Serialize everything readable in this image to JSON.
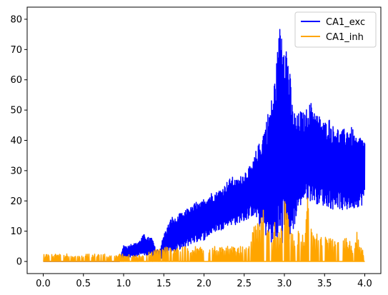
{
  "chart_data": {
    "type": "line",
    "xlim": [
      -0.2,
      4.2
    ],
    "ylim": [
      -4,
      84
    ],
    "xticks": [
      0.0,
      0.5,
      1.0,
      1.5,
      2.0,
      2.5,
      3.0,
      3.5,
      4.0
    ],
    "xtick_labels": [
      "0.0",
      "0.5",
      "1.0",
      "1.5",
      "2.0",
      "2.5",
      "3.0",
      "3.5",
      "4.0"
    ],
    "yticks": [
      0,
      10,
      20,
      30,
      40,
      50,
      60,
      70,
      80
    ],
    "ytick_labels": [
      "0",
      "10",
      "20",
      "30",
      "40",
      "50",
      "60",
      "70",
      "80"
    ],
    "grid": false,
    "legend_position": "top-right",
    "series": [
      {
        "name": "CA1_exc",
        "color": "#0000ff",
        "x": [
          0.0,
          0.25,
          0.5,
          0.75,
          0.95,
          1.0,
          1.05,
          1.1,
          1.15,
          1.2,
          1.25,
          1.3,
          1.35,
          1.4,
          1.45,
          1.5,
          1.55,
          1.6,
          1.65,
          1.7,
          1.75,
          1.8,
          1.85,
          1.9,
          1.95,
          2.0,
          2.05,
          2.1,
          2.15,
          2.2,
          2.25,
          2.3,
          2.35,
          2.4,
          2.45,
          2.5,
          2.55,
          2.6,
          2.65,
          2.7,
          2.75,
          2.8,
          2.85,
          2.9,
          2.95,
          3.0,
          3.05,
          3.1,
          3.15,
          3.2,
          3.25,
          3.3,
          3.35,
          3.4,
          3.45,
          3.5,
          3.55,
          3.6,
          3.65,
          3.7,
          3.75,
          3.8,
          3.85,
          3.9,
          3.95,
          4.0
        ],
        "y_high": [
          0,
          0,
          0,
          0,
          0,
          5.5,
          5,
          6,
          6,
          7,
          9,
          8,
          8,
          4,
          4,
          9,
          12,
          15,
          14,
          16,
          16,
          18,
          18,
          20,
          19,
          21,
          22,
          23,
          23,
          24,
          25,
          27,
          28,
          27,
          28,
          30,
          31,
          32,
          37,
          40,
          45,
          50,
          55,
          66,
          80.5,
          78,
          69,
          52,
          48,
          50,
          49,
          52,
          53,
          49,
          48,
          46,
          48,
          45,
          45,
          43,
          44,
          45,
          44,
          40,
          42,
          40
        ],
        "y_low": [
          0,
          0,
          0,
          0,
          0,
          1,
          1,
          1.5,
          1.5,
          2,
          2,
          2,
          2,
          1,
          0,
          1,
          2,
          3,
          3,
          4,
          4,
          5,
          6,
          6,
          7,
          7,
          8,
          9,
          10,
          10,
          11,
          12,
          12,
          12,
          13,
          13,
          14,
          15,
          14,
          10,
          9,
          7,
          5,
          4,
          4,
          5,
          3,
          8,
          15,
          18,
          20,
          20,
          20,
          19,
          19,
          18,
          18,
          17,
          18,
          17,
          16,
          17,
          17,
          18,
          18,
          20
        ]
      },
      {
        "name": "CA1_inh",
        "color": "#ffa500",
        "x": [
          0.0,
          0.25,
          0.5,
          0.75,
          1.0,
          1.25,
          1.5,
          1.75,
          2.0,
          2.25,
          2.5,
          2.75,
          2.8,
          2.85,
          2.9,
          2.95,
          3.0,
          3.05,
          3.1,
          3.15,
          3.2,
          3.25,
          3.3,
          3.35,
          3.4,
          3.45,
          3.5,
          3.55,
          3.6,
          3.65,
          3.7,
          3.75,
          3.8,
          3.85,
          3.9,
          3.95,
          4.0
        ],
        "y_high": [
          2.5,
          2.5,
          2.5,
          2.5,
          2.5,
          2.5,
          5,
          5,
          5,
          5,
          5,
          18,
          10,
          12,
          16,
          8,
          23.5,
          16,
          10,
          10,
          10,
          8,
          26,
          10,
          10,
          8,
          8,
          8,
          8,
          10,
          5,
          8,
          8,
          5,
          10,
          5,
          2.5
        ],
        "y_low": [
          0,
          0,
          0,
          0,
          0,
          0,
          0,
          0,
          0,
          0,
          0,
          0,
          0,
          0,
          0,
          0,
          0,
          0,
          0,
          0,
          0,
          0,
          0,
          0,
          0,
          0,
          0,
          0,
          0,
          0,
          0,
          0,
          0,
          0,
          0,
          0,
          0
        ]
      }
    ]
  }
}
